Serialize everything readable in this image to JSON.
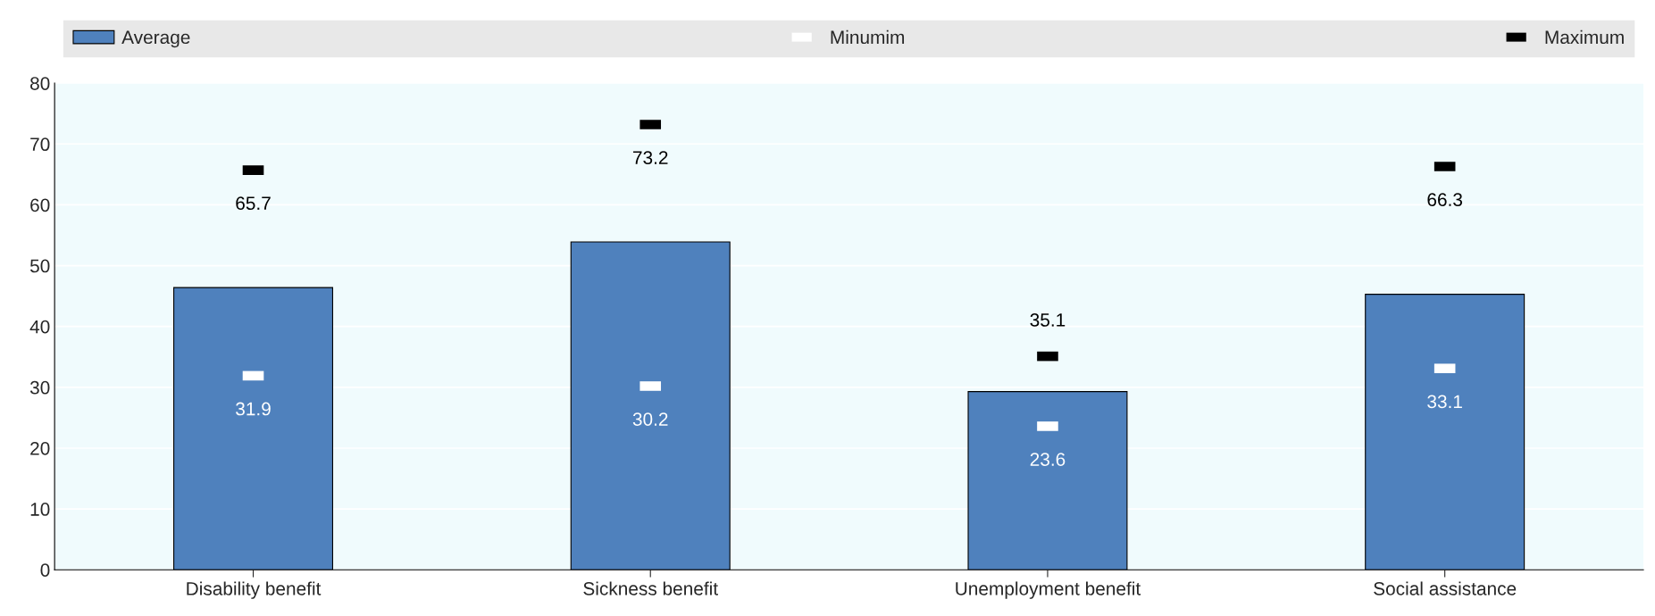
{
  "chart_data": {
    "type": "bar",
    "categories": [
      "Disability benefit",
      "Sickness benefit",
      "Unemployment benefit",
      "Social assistance"
    ],
    "series": [
      {
        "name": "Average",
        "type": "bar",
        "color": "#4f81bd",
        "values": [
          46.4,
          53.9,
          29.3,
          45.3
        ]
      },
      {
        "name": "Minumim",
        "type": "scatter",
        "color": "#ffffff",
        "x": [
          "Disability benefit",
          "Sickness benefit",
          "Unemployment benefit",
          "Social assistance"
        ],
        "values": [
          31.9,
          30.2,
          23.6,
          33.1
        ],
        "value_labels": [
          "31.9",
          "30.2",
          "23.6",
          "33.1"
        ]
      },
      {
        "name": "Maximum",
        "type": "scatter",
        "color": "#000000",
        "x": [
          "Disability benefit",
          "Sickness benefit",
          "Unemployment benefit",
          "Social assistance"
        ],
        "values": [
          65.7,
          73.2,
          35.1,
          66.3
        ],
        "value_labels": [
          "65.7",
          "73.2",
          "35.1",
          "66.3"
        ]
      }
    ],
    "ylim": [
      0,
      80
    ],
    "yticks": [
      0,
      10,
      20,
      30,
      40,
      50,
      60,
      70,
      80
    ],
    "grid": "y",
    "legend": "top"
  }
}
